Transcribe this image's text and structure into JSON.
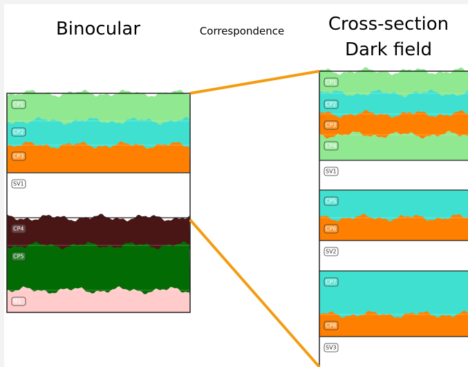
{
  "header": {
    "left_title": "Binocular",
    "middle_title": "Correspondence",
    "right_title": [
      "Cross-section",
      "Dark field"
    ]
  },
  "left": {
    "layers": [
      {
        "label": "CP1",
        "color": "#90e890"
      },
      {
        "label": "CP2",
        "color": "#40e0d0"
      },
      {
        "label": "CP3",
        "color": "#ff8000"
      },
      {
        "label": "SV1",
        "color": "#ffffff"
      },
      {
        "label": "CP4",
        "color": "#4a1515"
      },
      {
        "label": "CP5",
        "color": "#036b03"
      },
      {
        "label": "M1",
        "color": "#ffcccb"
      }
    ]
  },
  "right": {
    "layers": [
      {
        "label": "CP1",
        "color": "#90e890"
      },
      {
        "label": "CP2",
        "color": "#40e0d0"
      },
      {
        "label": "CP3",
        "color": "#ff8000"
      },
      {
        "label": "CP4",
        "color": "#90e890"
      },
      {
        "label": "SV1",
        "color": "#ffffff"
      },
      {
        "label": "CP5",
        "color": "#40e0d0"
      },
      {
        "label": "CP6",
        "color": "#ff8000"
      },
      {
        "label": "SV2",
        "color": "#ffffff"
      },
      {
        "label": "CP7",
        "color": "#40e0d0"
      },
      {
        "label": "CP8",
        "color": "#ff8000"
      },
      {
        "label": "SV3",
        "color": "#ffffff"
      }
    ]
  }
}
